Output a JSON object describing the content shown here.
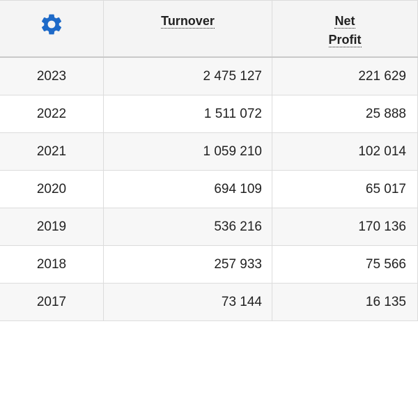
{
  "table": {
    "settings_icon": "gear-icon",
    "accent_color": "#1e6ac8",
    "headers": {
      "turnover": "Turnover",
      "net_profit_line1": "Net",
      "net_profit_line2": "Profit"
    },
    "rows": [
      {
        "year": "2023",
        "turnover": "2 475 127",
        "net_profit": "221 629"
      },
      {
        "year": "2022",
        "turnover": "1 511 072",
        "net_profit": "25 888"
      },
      {
        "year": "2021",
        "turnover": "1 059 210",
        "net_profit": "102 014"
      },
      {
        "year": "2020",
        "turnover": "694 109",
        "net_profit": "65 017"
      },
      {
        "year": "2019",
        "turnover": "536 216",
        "net_profit": "170 136"
      },
      {
        "year": "2018",
        "turnover": "257 933",
        "net_profit": "75 566"
      },
      {
        "year": "2017",
        "turnover": "73 144",
        "net_profit": "16 135"
      }
    ]
  }
}
